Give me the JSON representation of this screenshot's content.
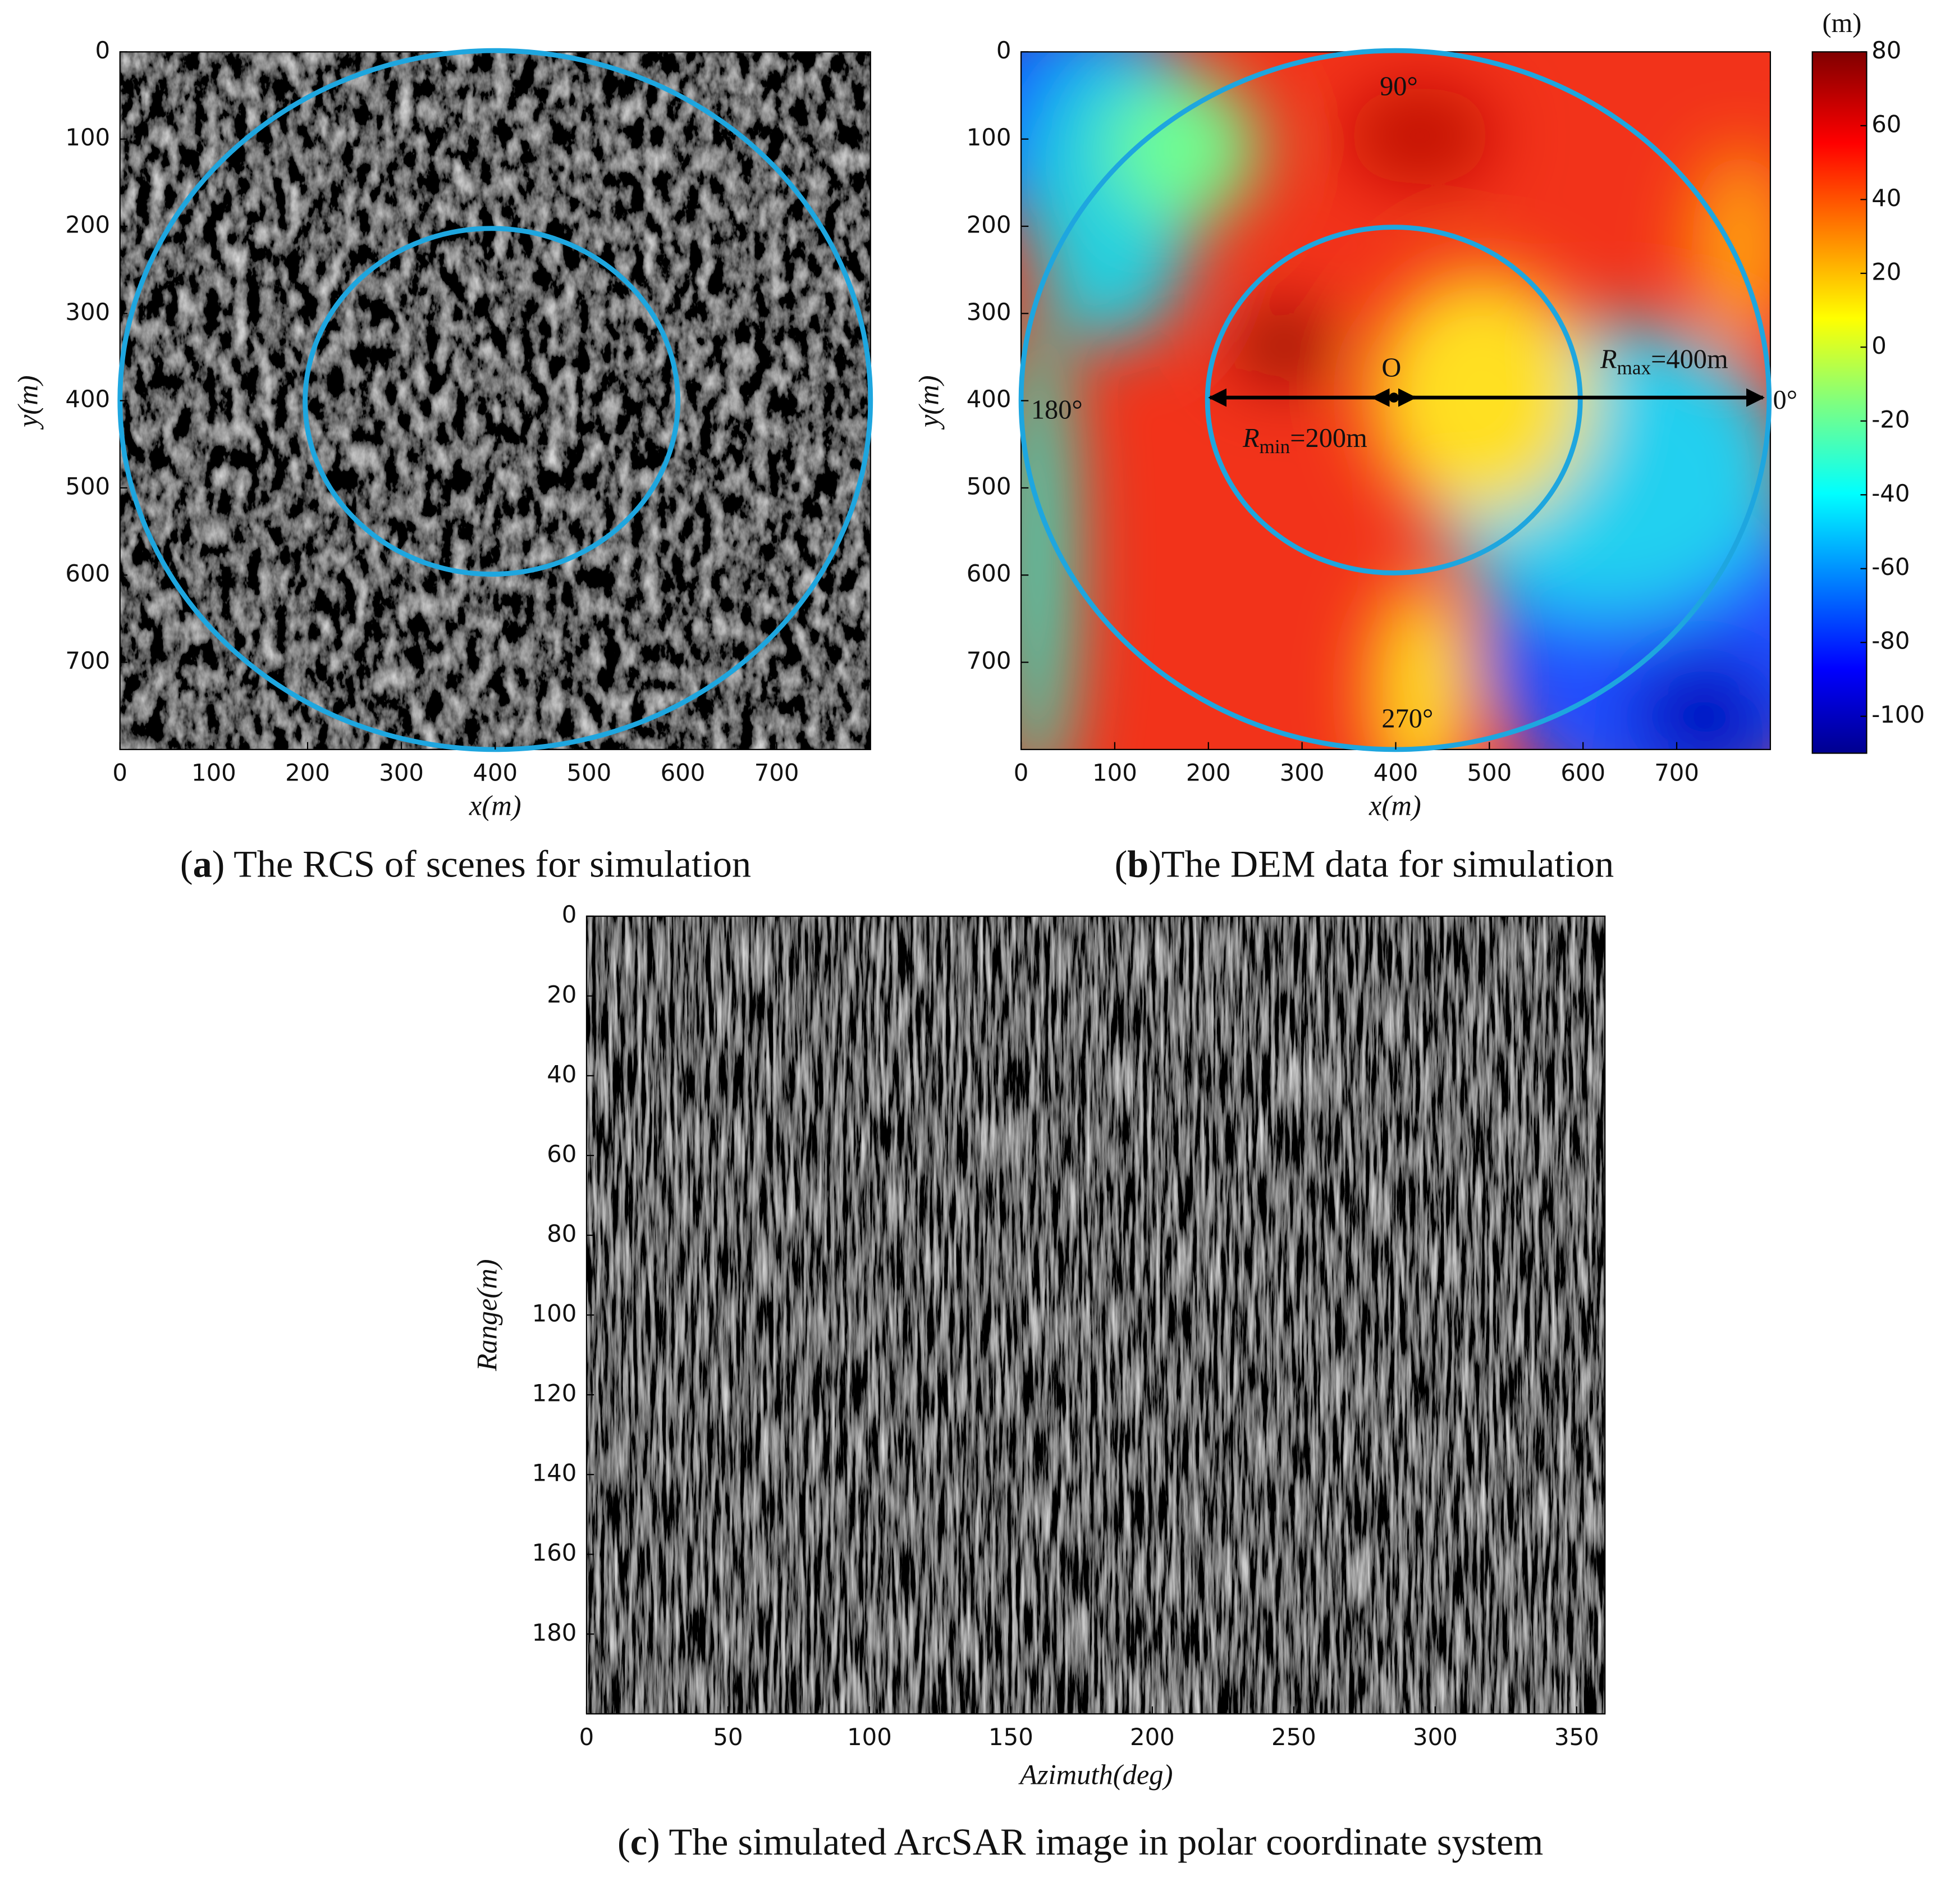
{
  "panel_a": {
    "xlabel": "x(m)",
    "ylabel": "y(m)",
    "xlim": [
      0,
      800
    ],
    "ylim": [
      0,
      800
    ],
    "y_reversed": true,
    "xticks": [
      0,
      100,
      200,
      300,
      400,
      500,
      600,
      700
    ],
    "yticks": [
      0,
      100,
      200,
      300,
      400,
      500,
      600,
      700
    ],
    "caption_open": "(",
    "caption_label": "a",
    "caption_text": ") The RCS of scenes for simulation"
  },
  "panel_b": {
    "xlabel": "x(m)",
    "ylabel": "y(m)",
    "xlim": [
      0,
      800
    ],
    "ylim": [
      0,
      800
    ],
    "y_reversed": true,
    "xticks": [
      0,
      100,
      200,
      300,
      400,
      500,
      600,
      700
    ],
    "yticks": [
      0,
      100,
      200,
      300,
      400,
      500,
      600,
      700
    ],
    "colorbar_unit": "(m)",
    "clim": [
      -110,
      80
    ],
    "cticks": [
      80,
      60,
      40,
      20,
      0,
      -20,
      -40,
      -60,
      -80,
      -100
    ],
    "angle_labels": [
      "90°",
      "180°",
      "270°",
      "0°"
    ],
    "center_label": "O",
    "r_max": {
      "symbol": "R",
      "subscript": "max",
      "text": "=400m"
    },
    "r_min": {
      "symbol": "R",
      "subscript": "min",
      "text": "=200m"
    },
    "caption_open": "(",
    "caption_label": "b",
    "caption_text": ")The DEM data for simulation"
  },
  "panel_c": {
    "xlabel": "Azimuth(deg)",
    "ylabel": "Range(m)",
    "xlim": [
      0,
      360
    ],
    "ylim": [
      0,
      200
    ],
    "y_reversed": true,
    "xticks": [
      0,
      50,
      100,
      150,
      200,
      250,
      300,
      350
    ],
    "yticks": [
      0,
      20,
      40,
      60,
      80,
      100,
      120,
      140,
      160,
      180
    ],
    "caption_open": "(",
    "caption_label": "c",
    "caption_text": ") The simulated ArcSAR image in polar coordinate system"
  }
}
